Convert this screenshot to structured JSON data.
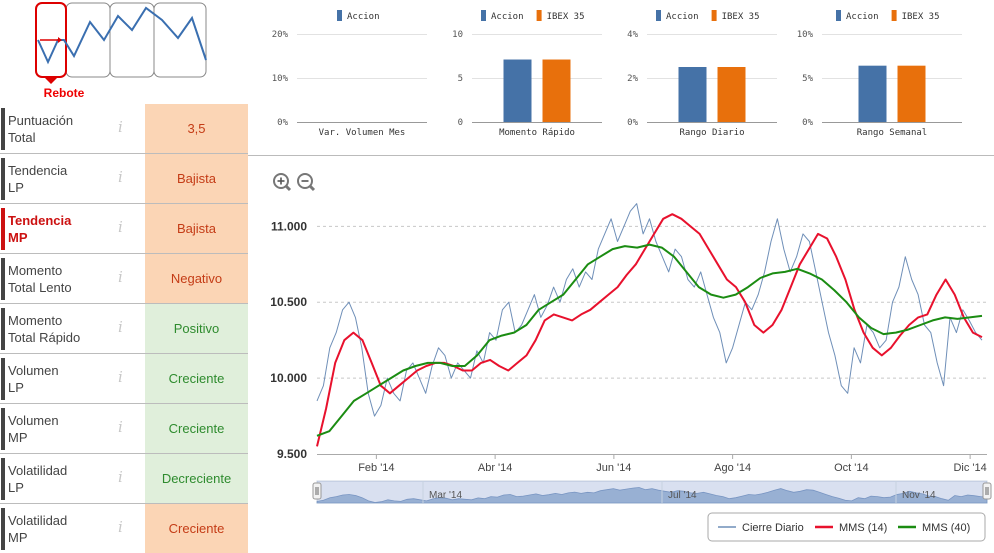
{
  "pattern": {
    "label": "Rebote"
  },
  "rows": [
    {
      "label1": "Puntuación",
      "label2": "Total",
      "info": "i",
      "value": "3,5",
      "status": "neg",
      "active": false
    },
    {
      "label1": "Tendencia",
      "label2": "LP",
      "info": "i",
      "value": "Bajista",
      "status": "neg",
      "active": false
    },
    {
      "label1": "Tendencia",
      "label2": "MP",
      "info": "i",
      "value": "Bajista",
      "status": "neg",
      "active": true
    },
    {
      "label1": "Momento",
      "label2": "Total Lento",
      "info": "i",
      "value": "Negativo",
      "status": "neg",
      "active": false
    },
    {
      "label1": "Momento",
      "label2": "Total Rápido",
      "info": "i",
      "value": "Positivo",
      "status": "pos",
      "active": false
    },
    {
      "label1": "Volumen",
      "label2": "LP",
      "info": "i",
      "value": "Creciente",
      "status": "pos",
      "active": false
    },
    {
      "label1": "Volumen",
      "label2": "MP",
      "info": "i",
      "value": "Creciente",
      "status": "pos",
      "active": false
    },
    {
      "label1": "Volatilidad",
      "label2": "LP",
      "info": "i",
      "value": "Decreciente",
      "status": "pos",
      "active": false
    },
    {
      "label1": "Volatilidad",
      "label2": "MP",
      "info": "i",
      "value": "Creciente",
      "status": "neg",
      "active": false
    }
  ],
  "colors": {
    "accion": "#4572a7",
    "ibex": "#e8700c",
    "cierre": "#6f8fb8",
    "mms14": "#e8112d",
    "mms40": "#1b8c12",
    "neg_bg": "#fbd5b5",
    "pos_bg": "#e0efdb"
  },
  "chart_data": [
    {
      "type": "bar",
      "title": "Var. Volumen Mes",
      "legend": [
        "Accion"
      ],
      "yticks": [
        "20%",
        "10%",
        "0%"
      ],
      "ylim": [
        0,
        20
      ],
      "series": [
        {
          "name": "Accion",
          "values": [
            0
          ]
        }
      ]
    },
    {
      "type": "bar",
      "title": "Momento Rápido",
      "legend": [
        "Accion",
        "IBEX 35"
      ],
      "yticks": [
        "10",
        "5",
        "0"
      ],
      "ylim": [
        0,
        10
      ],
      "series": [
        {
          "name": "Accion",
          "values": [
            7.1
          ]
        },
        {
          "name": "IBEX 35",
          "values": [
            7.1
          ]
        }
      ]
    },
    {
      "type": "bar",
      "title": "Rango Diario",
      "legend": [
        "Accion",
        "IBEX 35"
      ],
      "yticks": [
        "4%",
        "2%",
        "0%"
      ],
      "ylim": [
        0,
        4
      ],
      "series": [
        {
          "name": "Accion",
          "values": [
            2.5
          ]
        },
        {
          "name": "IBEX 35",
          "values": [
            2.5
          ]
        }
      ]
    },
    {
      "type": "bar",
      "title": "Rango Semanal",
      "legend": [
        "Accion",
        "IBEX 35"
      ],
      "yticks": [
        "10%",
        "5%",
        "0%"
      ],
      "ylim": [
        0,
        10
      ],
      "series": [
        {
          "name": "Accion",
          "values": [
            6.4
          ]
        },
        {
          "name": "IBEX 35",
          "values": [
            6.4
          ]
        }
      ]
    },
    {
      "type": "line",
      "title": "",
      "ylim": [
        9500,
        11200
      ],
      "yticks": [
        "11.000",
        "10.500",
        "10.000",
        "9.500"
      ],
      "ytick_values": [
        11000,
        10500,
        10000,
        9500
      ],
      "x_range": [
        0,
        11.2
      ],
      "xticks": [
        {
          "label": "Feb '14",
          "x": 1
        },
        {
          "label": "Abr '14",
          "x": 3
        },
        {
          "label": "Jun '14",
          "x": 5
        },
        {
          "label": "Ago '14",
          "x": 7
        },
        {
          "label": "Oct '14",
          "x": 9
        },
        {
          "label": "Dic '14",
          "x": 11
        }
      ],
      "navigator_labels": [
        "Mar '14",
        "Jul '14",
        "Nov '14"
      ],
      "series": [
        {
          "name": "Cierre Diario",
          "values": [
            9850,
            9950,
            10200,
            10300,
            10450,
            10500,
            10400,
            10200,
            9900,
            9750,
            9820,
            10000,
            9900,
            9850,
            10050,
            10100,
            10000,
            9900,
            10080,
            10200,
            10150,
            10000,
            10100,
            10050,
            10000,
            10180,
            10100,
            10300,
            10250,
            10450,
            10500,
            10300,
            10350,
            10450,
            10550,
            10400,
            10480,
            10600,
            10500,
            10650,
            10720,
            10600,
            10700,
            10650,
            10850,
            10950,
            11050,
            10900,
            11000,
            11100,
            11150,
            10950,
            11050,
            10900,
            10800,
            10700,
            10850,
            10800,
            10650,
            10600,
            10700,
            10550,
            10400,
            10300,
            10100,
            10200,
            10350,
            10500,
            10450,
            10550,
            10700,
            10900,
            11050,
            10850,
            10700,
            10800,
            10950,
            10900,
            10700,
            10500,
            10300,
            10150,
            9950,
            9900,
            10200,
            10100,
            10350,
            10300,
            10200,
            10250,
            10500,
            10600,
            10800,
            10650,
            10550,
            10350,
            10300,
            10100,
            9950,
            10400,
            10300,
            10450,
            10380,
            10300,
            10250
          ],
          "comment": "approx daily closes, 105 samples across Jan-Dic 2014"
        },
        {
          "name": "MMS (14)",
          "values": [
            9550,
            9800,
            10100,
            10250,
            10300,
            10250,
            10100,
            9950,
            9900,
            9950,
            10000,
            10050,
            10080,
            10100,
            10100,
            10080,
            10050,
            10050,
            10100,
            10120,
            10080,
            10050,
            10100,
            10150,
            10250,
            10380,
            10420,
            10400,
            10380,
            10420,
            10450,
            10500,
            10550,
            10600,
            10680,
            10750,
            10850,
            10950,
            11050,
            11080,
            11050,
            11000,
            10950,
            10850,
            10750,
            10650,
            10600,
            10500,
            10350,
            10300,
            10350,
            10450,
            10600,
            10750,
            10850,
            10950,
            10920,
            10800,
            10650,
            10450,
            10300,
            10200,
            10150,
            10200,
            10280,
            10350,
            10400,
            10420,
            10550,
            10650,
            10550,
            10400,
            10300,
            10270
          ],
          "comment": "approx MMS 14 values"
        },
        {
          "name": "MMS (40)",
          "values": [
            9620,
            9650,
            9750,
            9850,
            9900,
            9950,
            10000,
            10050,
            10080,
            10100,
            10100,
            10080,
            10080,
            10150,
            10250,
            10280,
            10300,
            10350,
            10450,
            10500,
            10550,
            10650,
            10750,
            10800,
            10850,
            10870,
            10860,
            10880,
            10860,
            10800,
            10700,
            10600,
            10550,
            10530,
            10550,
            10600,
            10660,
            10690,
            10700,
            10720,
            10690,
            10650,
            10580,
            10500,
            10400,
            10330,
            10290,
            10300,
            10320,
            10350,
            10380,
            10400,
            10390,
            10400,
            10410
          ],
          "comment": "approx MMS 40 values"
        }
      ]
    }
  ]
}
